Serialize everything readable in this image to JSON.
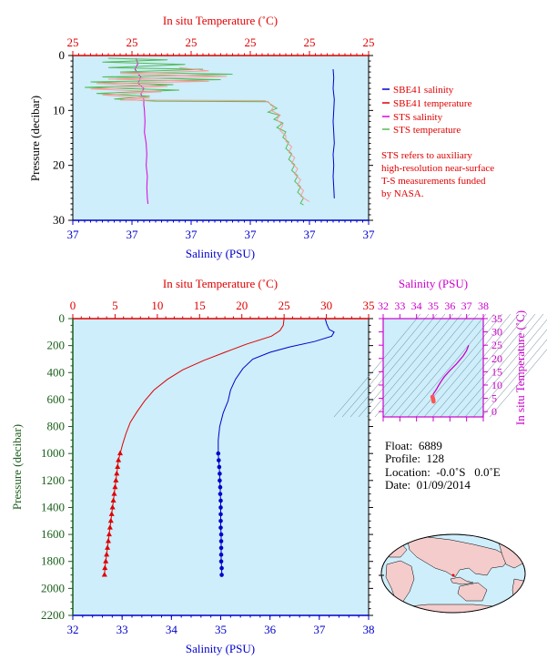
{
  "colors": {
    "plot_bg": "#cdeefa",
    "salinity_blue": "#0000cc",
    "temperature_red": "#e00000",
    "sts_salinity": "#dd00dd",
    "sts_temperature": "#55bb55",
    "sts_temperature_pink": "#ff9999",
    "pressure_axis": "#1a5e1a",
    "ts_magenta": "#cc00cc",
    "text_black": "#000000"
  },
  "chart_data": [
    {
      "type": "line",
      "panel": "near-surface",
      "title": "",
      "top_axis": {
        "label": "In situ Temperature (˚C)",
        "ticks": [
          "25",
          "25",
          "25",
          "25",
          "25",
          "25"
        ],
        "range": [
          24.8,
          25.3
        ]
      },
      "bottom_axis": {
        "label": "Salinity (PSU)",
        "ticks": [
          "37",
          "37",
          "37",
          "37",
          "37",
          "37"
        ],
        "range": [
          36.8,
          37.3
        ]
      },
      "left_axis": {
        "label": "Pressure (decibar)",
        "ticks": [
          0,
          10,
          20,
          30
        ],
        "range": [
          0,
          30
        ],
        "inverted": true
      },
      "legend": {
        "placement": "right",
        "entries": [
          {
            "name": "SBE41 salinity",
            "color": "#0000cc"
          },
          {
            "name": "SBE41 temperature",
            "color": "#e00000"
          },
          {
            "name": "STS salinity",
            "color": "#dd00dd"
          },
          {
            "name": "STS temperature",
            "color": "#55bb55"
          }
        ]
      },
      "note": [
        "STS refers to auxiliary",
        "high-resolution near-surface",
        "T-S measurements funded",
        "by NASA."
      ],
      "series": [
        {
          "name": "SBE41 salinity",
          "axis": "salinity",
          "points": [
            [
              37.24,
              2.5
            ],
            [
              37.241,
              4
            ],
            [
              37.24,
              6
            ],
            [
              37.242,
              8
            ],
            [
              37.241,
              10
            ],
            [
              37.24,
              12
            ],
            [
              37.241,
              14
            ],
            [
              37.242,
              16
            ],
            [
              37.24,
              18
            ],
            [
              37.241,
              20
            ],
            [
              37.24,
              22
            ],
            [
              37.241,
              24
            ],
            [
              37.242,
              26
            ]
          ]
        },
        {
          "name": "STS salinity",
          "axis": "salinity",
          "points": [
            [
              36.907,
              0.5
            ],
            [
              36.91,
              1.5
            ],
            [
              36.905,
              2.5
            ],
            [
              36.915,
              4
            ],
            [
              36.91,
              5
            ],
            [
              36.92,
              6
            ],
            [
              36.915,
              7
            ],
            [
              36.92,
              8
            ],
            [
              36.92,
              9
            ],
            [
              36.921,
              10
            ],
            [
              36.922,
              12
            ],
            [
              36.921,
              14
            ],
            [
              36.924,
              16
            ],
            [
              36.925,
              18
            ],
            [
              36.924,
              20
            ],
            [
              36.926,
              22
            ],
            [
              36.925,
              24
            ],
            [
              36.926,
              26
            ],
            [
              36.927,
              27
            ]
          ]
        },
        {
          "name": "STS temperature",
          "axis": "temperature",
          "points": [
            [
              24.86,
              0.5
            ],
            [
              24.96,
              0.8
            ],
            [
              24.85,
              1.2
            ],
            [
              24.99,
              1.6
            ],
            [
              24.86,
              2.2
            ],
            [
              25.02,
              2.5
            ],
            [
              24.88,
              3.0
            ],
            [
              25.07,
              3.4
            ],
            [
              24.85,
              3.9
            ],
            [
              25.05,
              4.4
            ],
            [
              24.83,
              4.8
            ],
            [
              24.97,
              5.3
            ],
            [
              24.82,
              5.8
            ],
            [
              24.98,
              6.3
            ],
            [
              24.84,
              6.9
            ],
            [
              24.93,
              7.4
            ],
            [
              24.87,
              7.9
            ],
            [
              24.94,
              8.3
            ],
            [
              25.13,
              8.4
            ],
            [
              25.135,
              9.0
            ],
            [
              25.145,
              9.6
            ],
            [
              25.13,
              10.3
            ],
            [
              25.15,
              10.9
            ],
            [
              25.14,
              11.6
            ],
            [
              25.155,
              12.3
            ],
            [
              25.145,
              13.1
            ],
            [
              25.16,
              13.9
            ],
            [
              25.155,
              14.9
            ],
            [
              25.165,
              15.8
            ],
            [
              25.16,
              16.9
            ],
            [
              25.17,
              17.9
            ],
            [
              25.165,
              18.9
            ],
            [
              25.175,
              19.9
            ],
            [
              25.17,
              20.9
            ],
            [
              25.18,
              21.9
            ],
            [
              25.175,
              22.9
            ],
            [
              25.185,
              23.9
            ],
            [
              25.18,
              24.9
            ],
            [
              25.19,
              25.9
            ],
            [
              25.185,
              26.9
            ],
            [
              25.19,
              27.2
            ]
          ]
        },
        {
          "name": "SBE41 temperature",
          "axis": "temperature",
          "points": [
            [
              24.98,
              2.2
            ],
            [
              25.03,
              2.8
            ],
            [
              24.88,
              3.3
            ],
            [
              25.06,
              3.8
            ],
            [
              24.86,
              4.3
            ],
            [
              25.03,
              4.7
            ],
            [
              24.84,
              5.1
            ],
            [
              24.96,
              5.6
            ],
            [
              24.83,
              6.1
            ],
            [
              24.95,
              6.6
            ],
            [
              24.85,
              7.2
            ],
            [
              24.93,
              7.7
            ],
            [
              24.88,
              8.1
            ],
            [
              25.125,
              8.2
            ],
            [
              25.14,
              9.2
            ],
            [
              25.135,
              10.0
            ],
            [
              25.15,
              10.8
            ],
            [
              25.145,
              11.7
            ],
            [
              25.155,
              12.6
            ],
            [
              25.15,
              13.6
            ],
            [
              25.16,
              14.6
            ],
            [
              25.16,
              15.6
            ],
            [
              25.17,
              16.6
            ],
            [
              25.165,
              17.6
            ],
            [
              25.175,
              18.6
            ],
            [
              25.17,
              19.6
            ],
            [
              25.18,
              20.6
            ],
            [
              25.175,
              21.6
            ],
            [
              25.185,
              22.6
            ],
            [
              25.18,
              23.6
            ],
            [
              25.19,
              24.6
            ],
            [
              25.185,
              25.6
            ],
            [
              25.2,
              26.6
            ]
          ]
        }
      ]
    },
    {
      "type": "line",
      "panel": "full-profile",
      "title": "",
      "top_axis": {
        "label": "In situ Temperature (˚C)",
        "ticks": [
          0,
          5,
          10,
          15,
          20,
          25,
          30,
          35
        ],
        "range": [
          0,
          35
        ]
      },
      "bottom_axis": {
        "label": "Salinity (PSU)",
        "ticks": [
          32,
          33,
          34,
          35,
          36,
          37,
          38
        ],
        "range": [
          32,
          38
        ]
      },
      "left_axis": {
        "label": "Pressure (decibar)",
        "ticks": [
          0,
          200,
          400,
          600,
          800,
          1000,
          1200,
          1400,
          1600,
          1800,
          2000,
          2200
        ],
        "range": [
          0,
          2200
        ],
        "inverted": true
      },
      "series": [
        {
          "name": "Temperature",
          "axis": "temperature",
          "points": [
            [
              25,
              0
            ],
            [
              24.9,
              50
            ],
            [
              24.5,
              90
            ],
            [
              23.5,
              130
            ],
            [
              20.5,
              190
            ],
            [
              18,
              250
            ],
            [
              15.5,
              310
            ],
            [
              13,
              380
            ],
            [
              11.2,
              450
            ],
            [
              9.6,
              530
            ],
            [
              8.5,
              610
            ],
            [
              7.6,
              690
            ],
            [
              6.8,
              770
            ],
            [
              6.3,
              850
            ],
            [
              5.9,
              930
            ],
            [
              5.6,
              1000
            ]
          ],
          "sampled_points": [
            [
              5.6,
              1000
            ],
            [
              5.4,
              1050
            ],
            [
              5.3,
              1100
            ],
            [
              5.2,
              1150
            ],
            [
              5.1,
              1200
            ],
            [
              5.0,
              1250
            ],
            [
              4.9,
              1300
            ],
            [
              4.8,
              1350
            ],
            [
              4.7,
              1400
            ],
            [
              4.6,
              1450
            ],
            [
              4.5,
              1500
            ],
            [
              4.4,
              1550
            ],
            [
              4.3,
              1600
            ],
            [
              4.2,
              1650
            ],
            [
              4.1,
              1700
            ],
            [
              4.0,
              1750
            ],
            [
              3.9,
              1800
            ],
            [
              3.8,
              1850
            ],
            [
              3.75,
              1900
            ]
          ]
        },
        {
          "name": "Salinity",
          "axis": "salinity",
          "points": [
            [
              37.12,
              0
            ],
            [
              37.15,
              40
            ],
            [
              37.2,
              80
            ],
            [
              37.3,
              100
            ],
            [
              37.25,
              130
            ],
            [
              36.9,
              170
            ],
            [
              36.4,
              210
            ],
            [
              36,
              250
            ],
            [
              35.65,
              300
            ],
            [
              35.45,
              370
            ],
            [
              35.3,
              450
            ],
            [
              35.2,
              530
            ],
            [
              35.15,
              610
            ],
            [
              35.05,
              700
            ],
            [
              34.98,
              800
            ],
            [
              34.95,
              900
            ],
            [
              34.95,
              1000
            ]
          ],
          "sampled_points": [
            [
              34.95,
              1000
            ],
            [
              34.96,
              1050
            ],
            [
              34.97,
              1100
            ],
            [
              34.98,
              1150
            ],
            [
              34.98,
              1200
            ],
            [
              34.99,
              1250
            ],
            [
              34.99,
              1300
            ],
            [
              35.0,
              1350
            ],
            [
              35.0,
              1400
            ],
            [
              35.0,
              1450
            ],
            [
              35.0,
              1500
            ],
            [
              35.0,
              1550
            ],
            [
              35.01,
              1600
            ],
            [
              35.01,
              1650
            ],
            [
              35.01,
              1700
            ],
            [
              35.01,
              1750
            ],
            [
              35.01,
              1800
            ],
            [
              35.02,
              1850
            ],
            [
              35.02,
              1900
            ]
          ]
        }
      ]
    },
    {
      "type": "scatter",
      "panel": "t-s-diagram",
      "title": "",
      "top_axis": {
        "label": "Salinity (PSU)",
        "ticks": [
          32,
          33,
          34,
          35,
          36,
          37,
          38
        ],
        "range": [
          32,
          38
        ]
      },
      "right_axis": {
        "label": "In situ Temperature (˚C)",
        "ticks": [
          0,
          5,
          10,
          15,
          20,
          25,
          30,
          35
        ],
        "range": [
          -2,
          35
        ]
      },
      "series": [
        {
          "name": "T-S curve",
          "points": [
            [
              37.12,
              25
            ],
            [
              37.0,
              23
            ],
            [
              36.8,
              21
            ],
            [
              36.4,
              18
            ],
            [
              36.0,
              15.5
            ],
            [
              35.65,
              13
            ],
            [
              35.45,
              11.2
            ],
            [
              35.3,
              9.6
            ],
            [
              35.2,
              8.5
            ],
            [
              35.1,
              7.5
            ],
            [
              35.02,
              6.8
            ],
            [
              34.98,
              6.2
            ],
            [
              34.95,
              5.6
            ]
          ]
        },
        {
          "name": "deep samples",
          "points": [
            [
              34.95,
              5.6
            ],
            [
              34.96,
              5.4
            ],
            [
              34.97,
              5.3
            ],
            [
              34.98,
              5.1
            ],
            [
              34.99,
              4.9
            ],
            [
              35.0,
              4.7
            ],
            [
              35.0,
              4.5
            ],
            [
              35.01,
              4.3
            ],
            [
              35.01,
              4.1
            ],
            [
              35.02,
              3.9
            ],
            [
              35.02,
              3.75
            ]
          ]
        }
      ]
    }
  ],
  "float_info": {
    "float": "Float:  6889",
    "profile": "Profile:  128",
    "location": "Location:  -0.0˚S   0.0˚E",
    "date": "Date:  01/09/2014"
  }
}
